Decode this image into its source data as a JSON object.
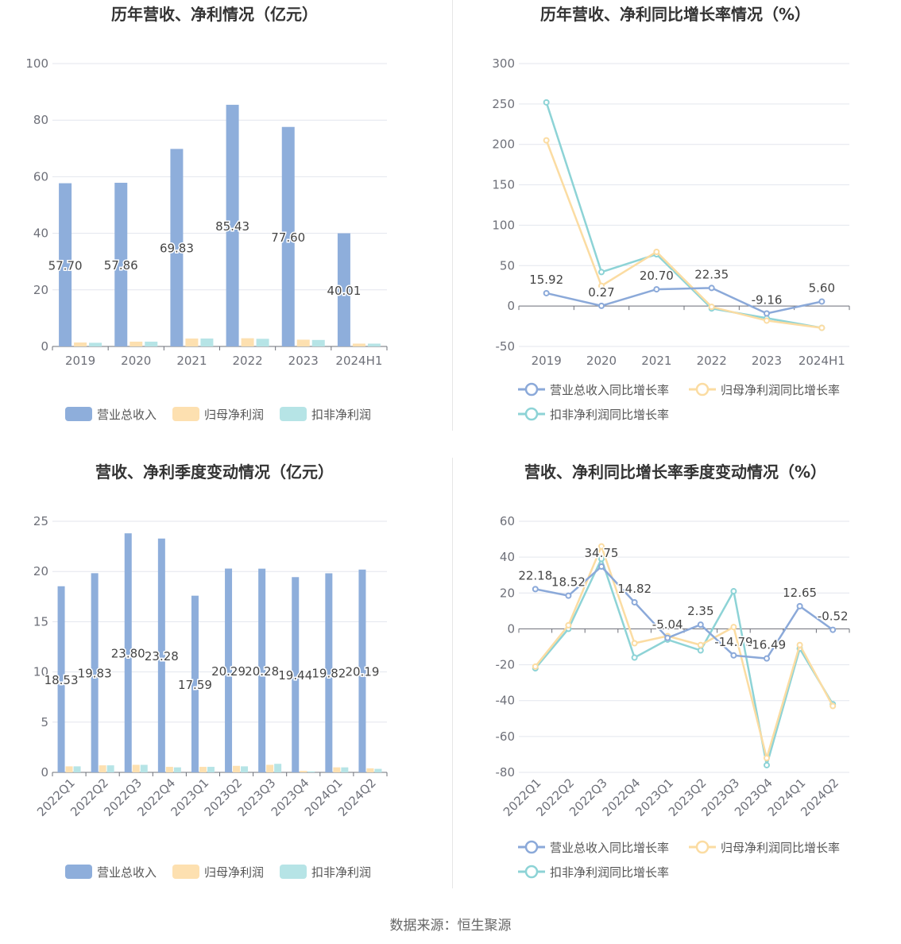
{
  "source_text": "数据来源：恒生聚源",
  "colors": {
    "revenue": "#8eaedb",
    "parent_net": "#fde0b0",
    "deducted_net": "#b6e4e6",
    "rev_line": "#8ba9d9",
    "parent_line": "#fbdca2",
    "deducted_line": "#8dd3d6",
    "grid": "#e3e6ee",
    "axis_text": "#6e7079",
    "title": "#333333"
  },
  "chart_data": [
    {
      "id": "annual_bar",
      "type": "bar",
      "title": "历年营收、净利情况（亿元）",
      "categories": [
        "2019",
        "2020",
        "2021",
        "2022",
        "2023",
        "2024H1"
      ],
      "ylim": [
        0,
        100
      ],
      "yticks": [
        0,
        20,
        40,
        60,
        80,
        100
      ],
      "legend_position": "bottom",
      "series": [
        {
          "name": "营业总收入",
          "color_key": "revenue",
          "values": [
            57.7,
            57.86,
            69.83,
            85.43,
            77.6,
            40.01
          ],
          "labels": [
            "57.70",
            "57.86",
            "69.83",
            "85.43",
            "77.60",
            "40.01"
          ]
        },
        {
          "name": "归母净利润",
          "color_key": "parent_net",
          "values": [
            1.4,
            1.7,
            2.8,
            2.9,
            2.4,
            1.0
          ]
        },
        {
          "name": "扣非净利润",
          "color_key": "deducted_net",
          "values": [
            1.3,
            1.7,
            2.8,
            2.7,
            2.3,
            1.0
          ]
        }
      ]
    },
    {
      "id": "annual_growth",
      "type": "line",
      "title": "历年营收、净利同比增长率情况（%）",
      "categories": [
        "2019",
        "2020",
        "2021",
        "2022",
        "2023",
        "2024H1"
      ],
      "ylim": [
        -50,
        300
      ],
      "yticks": [
        -50,
        0,
        50,
        100,
        150,
        200,
        250,
        300
      ],
      "legend_position": "bottom",
      "series": [
        {
          "name": "营业总收入同比增长率",
          "color_key": "rev_line",
          "values": [
            15.92,
            0.27,
            20.7,
            22.35,
            -9.16,
            5.6
          ],
          "labels": [
            "15.92",
            "0.27",
            "20.70",
            "22.35",
            "-9.16",
            "5.60"
          ]
        },
        {
          "name": "归母净利润同比增长率",
          "color_key": "parent_line",
          "values": [
            205,
            25,
            67,
            -1,
            -18,
            -27
          ]
        },
        {
          "name": "扣非净利润同比增长率",
          "color_key": "deducted_line",
          "values": [
            252,
            42,
            64,
            -3,
            -15,
            -27
          ]
        }
      ]
    },
    {
      "id": "quarterly_bar",
      "type": "bar",
      "title": "营收、净利季度变动情况（亿元）",
      "categories": [
        "2022Q1",
        "2022Q2",
        "2022Q3",
        "2022Q4",
        "2023Q1",
        "2023Q2",
        "2023Q3",
        "2023Q4",
        "2024Q1",
        "2024Q2"
      ],
      "ylim": [
        0,
        25
      ],
      "yticks": [
        0,
        5,
        10,
        15,
        20,
        25
      ],
      "legend_position": "bottom",
      "series": [
        {
          "name": "营业总收入",
          "color_key": "revenue",
          "values": [
            18.53,
            19.83,
            23.8,
            23.28,
            17.59,
            20.29,
            20.28,
            19.44,
            19.82,
            20.19
          ],
          "labels": [
            "18.53",
            "19.83",
            "23.80",
            "23.28",
            "17.59",
            "20.29",
            "20.28",
            "19.44",
            "19.82",
            "20.19"
          ]
        },
        {
          "name": "归母净利润",
          "color_key": "parent_net",
          "values": [
            0.6,
            0.7,
            0.75,
            0.55,
            0.55,
            0.65,
            0.75,
            0.15,
            0.5,
            0.4
          ]
        },
        {
          "name": "扣非净利润",
          "color_key": "deducted_net",
          "values": [
            0.6,
            0.7,
            0.75,
            0.5,
            0.55,
            0.6,
            0.85,
            0.1,
            0.5,
            0.35
          ]
        }
      ]
    },
    {
      "id": "quarterly_growth",
      "type": "line",
      "title": "营收、净利同比增长率季度变动情况（%）",
      "categories": [
        "2022Q1",
        "2022Q2",
        "2022Q3",
        "2022Q4",
        "2023Q1",
        "2023Q2",
        "2023Q3",
        "2023Q4",
        "2024Q1",
        "2024Q2"
      ],
      "ylim": [
        -80,
        60
      ],
      "yticks": [
        -80,
        -60,
        -40,
        -20,
        0,
        20,
        40,
        60
      ],
      "legend_position": "bottom",
      "series": [
        {
          "name": "营业总收入同比增长率",
          "color_key": "rev_line",
          "values": [
            22.18,
            18.52,
            34.75,
            14.82,
            -5.04,
            2.35,
            -14.79,
            -16.49,
            12.65,
            -0.52
          ],
          "labels": [
            "22.18",
            "18.52",
            "34.75",
            "14.82",
            "-5.04",
            "2.35",
            "-14.79",
            "-16.49",
            "12.65",
            "-0.52"
          ]
        },
        {
          "name": "归母净利润同比增长率",
          "color_key": "parent_line",
          "values": [
            -21,
            2,
            46,
            -8,
            -4,
            -9,
            1,
            -72,
            -9,
            -43
          ]
        },
        {
          "name": "扣非净利润同比增长率",
          "color_key": "deducted_line",
          "values": [
            -22,
            0,
            39,
            -16,
            -6,
            -12,
            21,
            -76,
            -11,
            -42
          ]
        }
      ]
    }
  ]
}
